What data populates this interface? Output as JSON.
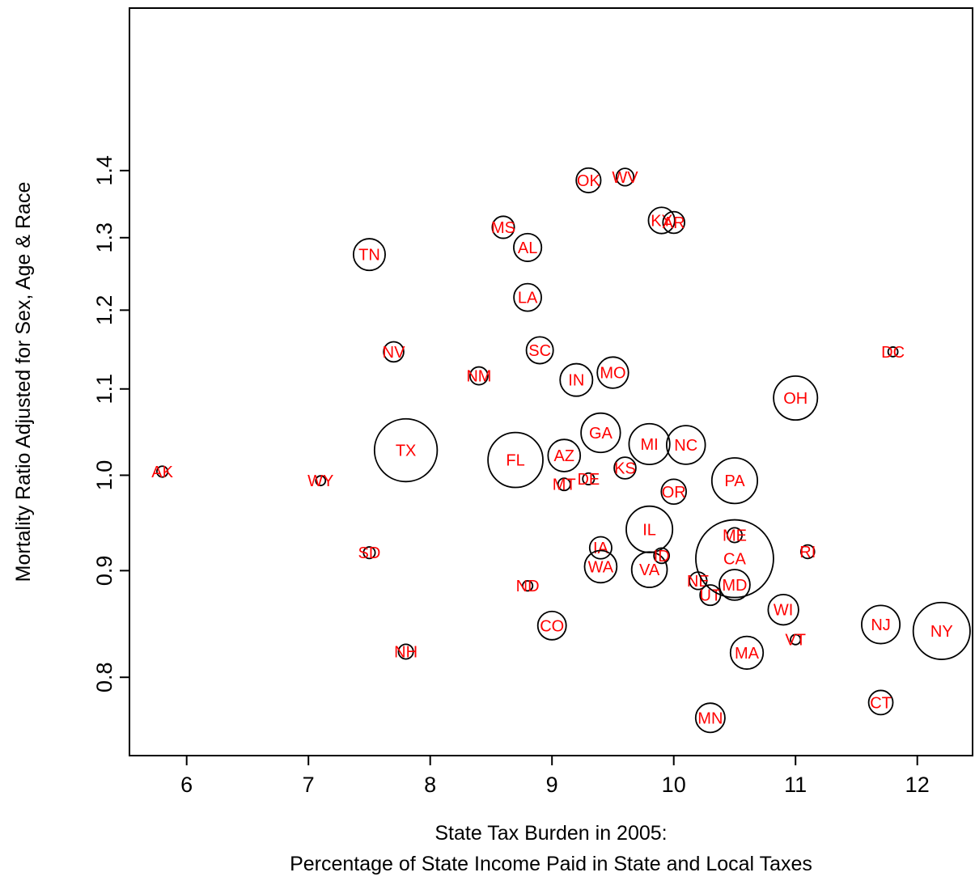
{
  "chart_data": {
    "type": "scatter",
    "title": "",
    "xlabel": [
      "State Tax Burden in 2005:",
      "Percentage of State Income Paid in State and Local Taxes"
    ],
    "ylabel": "Mortality Ratio Adjusted for Sex, Age & Race",
    "xlim": [
      5.5,
      12.5
    ],
    "ylim": [
      0.75,
      1.42
    ],
    "y_scale": "log",
    "x_ticks": [
      "6",
      "7",
      "8",
      "9",
      "10",
      "11",
      "12"
    ],
    "y_ticks": [
      "0.8",
      "0.9",
      "1.0",
      "1.1",
      "1.2",
      "1.3",
      "1.4"
    ],
    "grid": false,
    "marker": "open circle, area proportional to state population",
    "label_color": "#ff0000",
    "points": [
      {
        "state": "AK",
        "x": 5.8,
        "y": 1.004,
        "size": 0.7
      },
      {
        "state": "WY",
        "x": 7.1,
        "y": 0.994,
        "size": 0.5
      },
      {
        "state": "TX",
        "x": 7.8,
        "y": 1.028,
        "size": 23.5
      },
      {
        "state": "TN",
        "x": 7.5,
        "y": 1.276,
        "size": 6.0
      },
      {
        "state": "NV",
        "x": 7.7,
        "y": 1.146,
        "size": 2.4
      },
      {
        "state": "SD",
        "x": 7.5,
        "y": 0.918,
        "size": 0.8
      },
      {
        "state": "NH",
        "x": 7.8,
        "y": 0.823,
        "size": 1.3
      },
      {
        "state": "NM",
        "x": 8.4,
        "y": 1.116,
        "size": 1.9
      },
      {
        "state": "MS",
        "x": 8.6,
        "y": 1.315,
        "size": 2.9
      },
      {
        "state": "AL",
        "x": 8.8,
        "y": 1.286,
        "size": 4.6
      },
      {
        "state": "LA",
        "x": 8.8,
        "y": 1.217,
        "size": 4.5
      },
      {
        "state": "SC",
        "x": 8.9,
        "y": 1.148,
        "size": 4.3
      },
      {
        "state": "FL",
        "x": 8.7,
        "y": 1.017,
        "size": 18.0
      },
      {
        "state": "ND",
        "x": 8.8,
        "y": 0.885,
        "size": 0.6
      },
      {
        "state": "CO",
        "x": 9.0,
        "y": 0.847,
        "size": 4.8
      },
      {
        "state": "OK",
        "x": 9.3,
        "y": 1.385,
        "size": 3.6
      },
      {
        "state": "WV",
        "x": 9.6,
        "y": 1.39,
        "size": 1.8
      },
      {
        "state": "IN",
        "x": 9.2,
        "y": 1.111,
        "size": 6.3
      },
      {
        "state": "MO",
        "x": 9.5,
        "y": 1.12,
        "size": 5.8
      },
      {
        "state": "AZ",
        "x": 9.1,
        "y": 1.022,
        "size": 6.2
      },
      {
        "state": "MT",
        "x": 9.1,
        "y": 0.99,
        "size": 0.9
      },
      {
        "state": "DE",
        "x": 9.3,
        "y": 0.996,
        "size": 0.8
      },
      {
        "state": "GA",
        "x": 9.4,
        "y": 1.048,
        "size": 9.2
      },
      {
        "state": "KS",
        "x": 9.6,
        "y": 1.008,
        "size": 2.8
      },
      {
        "state": "MI",
        "x": 9.8,
        "y": 1.035,
        "size": 9.9
      },
      {
        "state": "NC",
        "x": 10.1,
        "y": 1.034,
        "size": 8.9
      },
      {
        "state": "OR",
        "x": 10.0,
        "y": 0.982,
        "size": 3.7
      },
      {
        "state": "IA",
        "x": 9.4,
        "y": 0.923,
        "size": 2.9
      },
      {
        "state": "WA",
        "x": 9.4,
        "y": 0.904,
        "size": 6.2
      },
      {
        "state": "VA",
        "x": 9.8,
        "y": 0.901,
        "size": 7.5
      },
      {
        "state": "IL",
        "x": 9.8,
        "y": 0.942,
        "size": 12.8
      },
      {
        "state": "ID",
        "x": 9.9,
        "y": 0.915,
        "size": 1.4
      },
      {
        "state": "KY",
        "x": 9.9,
        "y": 1.325,
        "size": 4.1
      },
      {
        "state": "AR",
        "x": 10.0,
        "y": 1.322,
        "size": 2.8
      },
      {
        "state": "NE",
        "x": 10.2,
        "y": 0.89,
        "size": 1.8
      },
      {
        "state": "UT",
        "x": 10.3,
        "y": 0.876,
        "size": 2.5
      },
      {
        "state": "MN",
        "x": 10.3,
        "y": 0.765,
        "size": 5.1
      },
      {
        "state": "ME",
        "x": 10.5,
        "y": 0.936,
        "size": 1.3
      },
      {
        "state": "CA",
        "x": 10.5,
        "y": 0.912,
        "size": 36.0
      },
      {
        "state": "MD",
        "x": 10.5,
        "y": 0.886,
        "size": 5.6
      },
      {
        "state": "PA",
        "x": 10.5,
        "y": 0.994,
        "size": 12.4
      },
      {
        "state": "OH",
        "x": 11.0,
        "y": 1.089,
        "size": 11.5
      },
      {
        "state": "WI",
        "x": 10.9,
        "y": 0.862,
        "size": 5.5
      },
      {
        "state": "MA",
        "x": 10.6,
        "y": 0.822,
        "size": 6.4
      },
      {
        "state": "VT",
        "x": 11.0,
        "y": 0.834,
        "size": 0.6
      },
      {
        "state": "RI",
        "x": 11.1,
        "y": 0.919,
        "size": 1.1
      },
      {
        "state": "DC",
        "x": 11.8,
        "y": 1.146,
        "size": 0.55
      },
      {
        "state": "NJ",
        "x": 11.7,
        "y": 0.848,
        "size": 8.7
      },
      {
        "state": "NY",
        "x": 12.2,
        "y": 0.842,
        "size": 19.3
      },
      {
        "state": "CT",
        "x": 11.7,
        "y": 0.778,
        "size": 3.5
      }
    ]
  }
}
